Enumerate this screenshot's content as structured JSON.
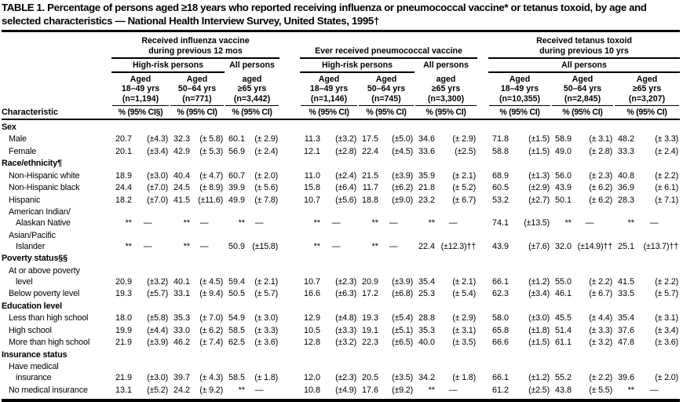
{
  "title": "TABLE 1. Percentage of persons aged ≥18 years who reported receiving influenza or pneumococcal vaccine* or tetanus toxoid, by age and selected characteristics — National Health Interview Survey, United States, 1995†",
  "header": {
    "characteristic_label": "Characteristic",
    "groups": [
      {
        "title": "Received influenza vaccine\nduring previous 12 mos",
        "subgroups": [
          {
            "label": "High-risk persons",
            "span": 2,
            "underline": true
          },
          {
            "label": "All persons",
            "span": 1,
            "underline": false
          }
        ],
        "columns": [
          {
            "aged": "Aged",
            "range": "18–49 yrs",
            "n": "(n=1,194)",
            "ci": "% (95% CI§)"
          },
          {
            "aged": "Aged",
            "range": "50–64 yrs",
            "n": "(n=771)",
            "ci": "% (95% CI)"
          },
          {
            "aged": "aged",
            "range": "≥65 yrs",
            "n": "(n=3,442)",
            "ci": "% (95% CI)"
          }
        ]
      },
      {
        "title": "Ever received pneumococcal vaccine",
        "subgroups": [
          {
            "label": "High-risk persons",
            "span": 2,
            "underline": true
          },
          {
            "label": "All persons",
            "span": 1,
            "underline": false
          }
        ],
        "columns": [
          {
            "aged": "Aged",
            "range": "18–49 yrs",
            "n": "(n=1,146)",
            "ci": "% (95% CI)"
          },
          {
            "aged": "Aged",
            "range": "50–64 yrs",
            "n": "(n=745)",
            "ci": "% (95% CI)"
          },
          {
            "aged": "aged",
            "range": "≥65 yrs",
            "n": "(n=3,300)",
            "ci": "% (95% CI)"
          }
        ]
      },
      {
        "title": "Received tetanus toxoid\nduring previous 10 yrs",
        "subgroups": [
          {
            "label": "All persons",
            "span": 3,
            "underline": true
          }
        ],
        "columns": [
          {
            "aged": "Aged",
            "range": "18–49 yrs",
            "n": "(n=10,355)",
            "ci": "% (95% CI)"
          },
          {
            "aged": "Aged",
            "range": "50–64 yrs",
            "n": "(n=2,845)",
            "ci": "% (95% CI)"
          },
          {
            "aged": "Aged",
            "range": "≥65 yrs",
            "n": "(n=3,207)",
            "ci": "% (95% CI)"
          }
        ]
      }
    ]
  },
  "rows": [
    {
      "type": "section",
      "label": "Sex"
    },
    {
      "type": "data",
      "label": "Male",
      "cells": [
        [
          "20.7",
          "(±4.3)"
        ],
        [
          "32.3",
          "(± 5.8)"
        ],
        [
          "60.1",
          "(± 2.9)"
        ],
        [
          "11.3",
          "(±3.2)"
        ],
        [
          "17.5",
          "(±5.0)"
        ],
        [
          "34.6",
          "(± 2.9)"
        ],
        [
          "71.8",
          "(±1.5)"
        ],
        [
          "58.9",
          "(± 3.1)"
        ],
        [
          "48.2",
          "(± 3.3)"
        ]
      ]
    },
    {
      "type": "data",
      "label": "Female",
      "cells": [
        [
          "20.1",
          "(±3.4)"
        ],
        [
          "42.9",
          "(± 5.3)"
        ],
        [
          "56.9",
          "(± 2.4)"
        ],
        [
          "12.1",
          "(±2.8)"
        ],
        [
          "22.4",
          "(±4.5)"
        ],
        [
          "33.6",
          "(±2.5)"
        ],
        [
          "58.8",
          "(±1.5)"
        ],
        [
          "49.0",
          "(± 2.8)"
        ],
        [
          "33.3",
          "(± 2.4)"
        ]
      ]
    },
    {
      "type": "section",
      "label": "Race/ethnicity¶"
    },
    {
      "type": "data",
      "label": "Non-Hispanic white",
      "cells": [
        [
          "18.9",
          "(±3.0)"
        ],
        [
          "40.4",
          "(± 4.7)"
        ],
        [
          "60.7",
          "(± 2.0)"
        ],
        [
          "11.0",
          "(±2.4)"
        ],
        [
          "21.5",
          "(±3.9)"
        ],
        [
          "35.9",
          "(± 2.1)"
        ],
        [
          "68.9",
          "(±1.3)"
        ],
        [
          "56.0",
          "(± 2.3)"
        ],
        [
          "40.8",
          "(± 2.2)"
        ]
      ]
    },
    {
      "type": "data",
      "label": "Non-Hispanic black",
      "cells": [
        [
          "24.4",
          "(±7.0)"
        ],
        [
          "24.5",
          "(± 8.9)"
        ],
        [
          "39.9",
          "(± 5.6)"
        ],
        [
          "15.8",
          "(±6.4)"
        ],
        [
          "11.7",
          "(±6.2)"
        ],
        [
          "21.8",
          "(± 5.2)"
        ],
        [
          "60.5",
          "(±2.9)"
        ],
        [
          "43.9",
          "(± 6.2)"
        ],
        [
          "36.9",
          "(± 6.1)"
        ]
      ]
    },
    {
      "type": "data",
      "label": "Hispanic",
      "cells": [
        [
          "18.2",
          "(±7.0)"
        ],
        [
          "41.5",
          "(±11.6)"
        ],
        [
          "49.9",
          "(± 7.8)"
        ],
        [
          "10.7",
          "(±5.6)"
        ],
        [
          "18.8",
          "(±9.0)"
        ],
        [
          "23.2",
          "(± 6.7)"
        ],
        [
          "53.2",
          "(±2.7)"
        ],
        [
          "50.1",
          "(± 6.2)"
        ],
        [
          "28.3",
          "(± 7.1)"
        ]
      ]
    },
    {
      "type": "data",
      "label": "American Indian/\nAlaskan Native",
      "cells": [
        [
          "**",
          "—"
        ],
        [
          "**",
          "—"
        ],
        [
          "**",
          "—"
        ],
        [
          "**",
          "—"
        ],
        [
          "**",
          "—"
        ],
        [
          "**",
          "—"
        ],
        [
          "74.1",
          "(±13.5)"
        ],
        [
          "**",
          "—"
        ],
        [
          "**",
          "—"
        ]
      ]
    },
    {
      "type": "data",
      "label": "Asian/Pacific\nIslander",
      "cells": [
        [
          "**",
          "—"
        ],
        [
          "**",
          "—"
        ],
        [
          "50.9",
          "(±15.8)"
        ],
        [
          "**",
          "—"
        ],
        [
          "**",
          "—"
        ],
        [
          "22.4",
          "(±12.3)††"
        ],
        [
          "43.9",
          "(±7.6)"
        ],
        [
          "32.0",
          "(±14.9)††"
        ],
        [
          "25.1",
          "(±13.7)††"
        ]
      ]
    },
    {
      "type": "section",
      "label": "Poverty status§§"
    },
    {
      "type": "data",
      "label": "At or above poverty\nlevel",
      "cells": [
        [
          "20.9",
          "(±3.2)"
        ],
        [
          "40.1",
          "(± 4.5)"
        ],
        [
          "59.4",
          "(± 2.1)"
        ],
        [
          "10.7",
          "(±2.3)"
        ],
        [
          "20.9",
          "(±3.9)"
        ],
        [
          "35.4",
          "(± 2.1)"
        ],
        [
          "66.1",
          "(±1.2)"
        ],
        [
          "55.0",
          "(± 2.2)"
        ],
        [
          "41.5",
          "(± 2.2)"
        ]
      ]
    },
    {
      "type": "data",
      "label": "Below poverty level",
      "cells": [
        [
          "19.3",
          "(±5.7)"
        ],
        [
          "33.1",
          "(± 9.4)"
        ],
        [
          "50.5",
          "(± 5.7)"
        ],
        [
          "16.6",
          "(±6.3)"
        ],
        [
          "17.2",
          "(±6.8)"
        ],
        [
          "25.3",
          "(± 5.4)"
        ],
        [
          "62.3",
          "(±3.4)"
        ],
        [
          "46.1",
          "(± 6.7)"
        ],
        [
          "33.5",
          "(± 5.7)"
        ]
      ]
    },
    {
      "type": "section",
      "label": "Education level"
    },
    {
      "type": "data",
      "label": "Less than high school",
      "cells": [
        [
          "18.0",
          "(±5.8)"
        ],
        [
          "35.3",
          "(± 7.0)"
        ],
        [
          "54.9",
          "(± 3.0)"
        ],
        [
          "12.9",
          "(±4.8)"
        ],
        [
          "19.3",
          "(±5.4)"
        ],
        [
          "28.8",
          "(± 2.9)"
        ],
        [
          "58.0",
          "(±3.0)"
        ],
        [
          "45.5",
          "(± 4.4)"
        ],
        [
          "35.4",
          "(± 3.1)"
        ]
      ]
    },
    {
      "type": "data",
      "label": "High school",
      "cells": [
        [
          "19.9",
          "(±4.4)"
        ],
        [
          "33.0",
          "(± 6.2)"
        ],
        [
          "58.5",
          "(± 3.3)"
        ],
        [
          "10.5",
          "(±3.3)"
        ],
        [
          "19.1",
          "(±5.1)"
        ],
        [
          "35.3",
          "(± 3.1)"
        ],
        [
          "65.8",
          "(±1.8)"
        ],
        [
          "51.4",
          "(± 3.3)"
        ],
        [
          "37.6",
          "(± 3.4)"
        ]
      ]
    },
    {
      "type": "data",
      "label": "More than high school",
      "cells": [
        [
          "21.9",
          "(±3.9)"
        ],
        [
          "46.2",
          "(± 7.4)"
        ],
        [
          "62.5",
          "(± 3.6)"
        ],
        [
          "12.8",
          "(±3.2)"
        ],
        [
          "22.3",
          "(±6.5)"
        ],
        [
          "40.0",
          "(± 3.5)"
        ],
        [
          "66.6",
          "(±1.5)"
        ],
        [
          "61.1",
          "(± 3.2)"
        ],
        [
          "47.8",
          "(± 3.6)"
        ]
      ]
    },
    {
      "type": "section",
      "label": "Insurance status"
    },
    {
      "type": "data",
      "label": "Have medical\ninsurance",
      "cells": [
        [
          "21.9",
          "(±3.0)"
        ],
        [
          "39.7",
          "(± 4.3)"
        ],
        [
          "58.5",
          "(± 1.8)"
        ],
        [
          "12.0",
          "(±2.3)"
        ],
        [
          "20.5",
          "(±3.5)"
        ],
        [
          "34.2",
          "(± 1.8)"
        ],
        [
          "66.1",
          "(±1.2)"
        ],
        [
          "55.2",
          "(± 2.2)"
        ],
        [
          "39.6",
          "(± 2.0)"
        ]
      ]
    },
    {
      "type": "data",
      "label": "No medical insurance",
      "cells": [
        [
          "13.1",
          "(±5.2)"
        ],
        [
          "24.2",
          "(± 9.2)"
        ],
        [
          "**",
          "—"
        ],
        [
          "10.8",
          "(±4.9)"
        ],
        [
          "17.6",
          "(±9.2)"
        ],
        [
          "**",
          "—"
        ],
        [
          "61.2",
          "(±2.5)"
        ],
        [
          "43.8",
          "(± 5.5)"
        ],
        [
          "**",
          "—"
        ]
      ]
    }
  ]
}
